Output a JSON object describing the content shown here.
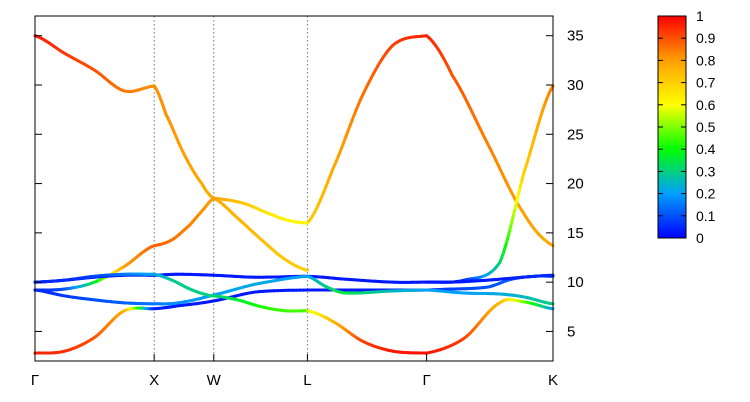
{
  "chart_data": {
    "type": "line",
    "title": "",
    "xlabel": "",
    "ylabel": "",
    "ylim": [
      2,
      37
    ],
    "grid": false,
    "legend": "none",
    "x_ticks": [
      "Γ",
      "X",
      "W",
      "L",
      "Γ",
      "K"
    ],
    "x_tick_positions": [
      0,
      1,
      1.5,
      2.2857,
      3.2857,
      4.3463
    ],
    "y_ticks": [
      5,
      10,
      15,
      20,
      25,
      30,
      35
    ],
    "y_tick_labels": [
      "5",
      "10",
      "15",
      "20",
      "25",
      "30",
      "35"
    ],
    "high_symmetry_lines": [
      1,
      1.5,
      2.2857
    ],
    "colorbar": {
      "ticks": [
        0,
        0.1,
        0.2,
        0.3,
        0.4,
        0.5,
        0.6,
        0.7,
        0.8,
        0.9,
        1
      ],
      "tick_labels": [
        "0",
        "0.1",
        "0.2",
        "0.3",
        "0.4",
        "0.5",
        "0.6",
        "0.7",
        "0.8",
        "0.9",
        "1"
      ],
      "colors": [
        "#0000ff",
        "#00a0ff",
        "#00ff00",
        "#ffff00",
        "#ffa000",
        "#ff0000"
      ]
    },
    "series": [
      {
        "x": [
          0,
          0.25,
          0.5,
          0.75,
          1.0
        ],
        "y": [
          35.0,
          33.2,
          31.5,
          29.4,
          29.9
        ],
        "c": [
          0.97,
          0.93,
          0.9,
          0.85,
          0.82
        ]
      },
      {
        "x": [
          1.0,
          1.1,
          1.25,
          1.4,
          1.5
        ],
        "y": [
          29.9,
          27.0,
          23.0,
          20.0,
          18.5
        ],
        "c": [
          0.82,
          0.82,
          0.8,
          0.78,
          0.78
        ]
      },
      {
        "x": [
          1.5,
          1.7,
          1.9,
          2.1,
          2.2857
        ],
        "y": [
          18.5,
          16.5,
          14.3,
          12.3,
          11.2
        ],
        "c": [
          0.78,
          0.76,
          0.74,
          0.72,
          0.7
        ]
      },
      {
        "x": [
          2.2857,
          2.5,
          2.75,
          3.0,
          3.2857
        ],
        "y": [
          16.0,
          21.5,
          29.0,
          34.0,
          35.0
        ],
        "c": [
          0.7,
          0.78,
          0.86,
          0.92,
          0.96
        ]
      },
      {
        "x": [
          3.2857,
          3.5,
          3.8,
          4.1,
          4.3463
        ],
        "y": [
          35.0,
          31.0,
          24.0,
          17.0,
          13.7
        ],
        "c": [
          0.96,
          0.9,
          0.84,
          0.8,
          0.78
        ]
      },
      {
        "x": [
          0,
          0.25,
          0.5,
          0.75,
          1.0
        ],
        "y": [
          2.8,
          3.0,
          4.4,
          7.1,
          7.3
        ],
        "c": [
          0.96,
          0.94,
          0.9,
          0.78,
          0.04
        ]
      },
      {
        "x": [
          1.0,
          1.2,
          1.5,
          1.85,
          2.2857
        ],
        "y": [
          7.3,
          7.6,
          8.1,
          9.0,
          9.2
        ],
        "c": [
          0.04,
          0.03,
          0.03,
          0.03,
          0.03
        ]
      },
      {
        "x": [
          2.2857,
          2.6,
          3.0,
          3.2857,
          3.5
        ],
        "y": [
          9.2,
          9.2,
          9.2,
          9.2,
          9.3
        ],
        "c": [
          0.03,
          0.03,
          0.04,
          0.05,
          0.08
        ]
      },
      {
        "x": [
          3.5,
          3.8,
          4.0,
          4.2,
          4.3463
        ],
        "y": [
          9.3,
          9.5,
          10.3,
          10.6,
          10.6
        ],
        "c": [
          0.08,
          0.1,
          0.12,
          0.1,
          0.08
        ]
      },
      {
        "x": [
          0,
          0.25,
          0.5,
          0.75,
          1.0
        ],
        "y": [
          9.2,
          9.3,
          10.0,
          11.6,
          13.7
        ],
        "c": [
          0.05,
          0.1,
          0.35,
          0.8,
          0.88
        ]
      },
      {
        "x": [
          1.0,
          1.15,
          1.3,
          1.4,
          1.5
        ],
        "y": [
          13.7,
          14.3,
          15.8,
          17.2,
          18.5
        ],
        "c": [
          0.88,
          0.86,
          0.84,
          0.82,
          0.8
        ]
      },
      {
        "x": [
          1.5,
          1.75,
          2.0,
          2.15,
          2.2857
        ],
        "y": [
          18.5,
          18.0,
          16.8,
          16.2,
          16.0
        ],
        "c": [
          0.8,
          0.72,
          0.64,
          0.62,
          0.62
        ]
      },
      {
        "x": [
          3.2857,
          3.6,
          3.9,
          4.1,
          4.3463
        ],
        "y": [
          10.0,
          10.2,
          12.0,
          21.0,
          29.9
        ],
        "c": [
          0.03,
          0.05,
          0.3,
          0.7,
          0.85
        ]
      },
      {
        "x": [
          0,
          0.25,
          0.5,
          0.75,
          1.0
        ],
        "y": [
          10.0,
          10.2,
          10.5,
          10.7,
          10.7
        ],
        "c": [
          0.05,
          0.05,
          0.04,
          0.03,
          0.03
        ]
      },
      {
        "x": [
          1.0,
          1.2,
          1.5,
          1.85,
          2.2857
        ],
        "y": [
          10.7,
          10.8,
          10.7,
          10.5,
          10.6
        ],
        "c": [
          0.03,
          0.03,
          0.03,
          0.03,
          0.03
        ]
      },
      {
        "x": [
          2.2857,
          2.6,
          3.0,
          3.2857,
          3.5
        ],
        "y": [
          10.6,
          10.3,
          10.0,
          10.0,
          10.0
        ],
        "c": [
          0.03,
          0.03,
          0.03,
          0.03,
          0.03
        ]
      },
      {
        "x": [
          3.5,
          3.8,
          4.0,
          4.2,
          4.3463
        ],
        "y": [
          10.0,
          10.2,
          10.4,
          10.6,
          10.7
        ],
        "c": [
          0.03,
          0.03,
          0.04,
          0.05,
          0.05
        ]
      },
      {
        "x": [
          0,
          0.25,
          0.5,
          0.75,
          1.0
        ],
        "y": [
          9.2,
          8.6,
          8.2,
          7.9,
          7.8
        ],
        "c": [
          0.05,
          0.07,
          0.1,
          0.12,
          0.15
        ]
      },
      {
        "x": [
          1.0,
          1.2,
          1.5,
          1.85,
          2.2857
        ],
        "y": [
          7.8,
          7.9,
          8.7,
          9.8,
          10.6
        ],
        "c": [
          0.15,
          0.18,
          0.2,
          0.22,
          0.2
        ]
      },
      {
        "x": [
          2.2857,
          2.45,
          2.6,
          3.0,
          3.2857
        ],
        "y": [
          10.6,
          9.5,
          8.9,
          9.1,
          9.2
        ],
        "c": [
          0.2,
          0.3,
          0.35,
          0.25,
          0.2
        ]
      },
      {
        "x": [
          3.2857,
          3.6,
          3.9,
          4.1,
          4.3463
        ],
        "y": [
          9.2,
          8.9,
          8.8,
          8.5,
          7.8
        ],
        "c": [
          0.2,
          0.2,
          0.22,
          0.25,
          0.3
        ]
      },
      {
        "x": [
          0,
          0.25,
          0.5,
          0.75,
          1.0
        ],
        "y": [
          10.0,
          10.2,
          10.6,
          10.8,
          10.8
        ],
        "c": [
          0.05,
          0.05,
          0.08,
          0.15,
          0.22
        ]
      },
      {
        "x": [
          1.0,
          1.15,
          1.3,
          1.45,
          1.5
        ],
        "y": [
          10.8,
          10.2,
          9.3,
          8.7,
          8.6
        ],
        "c": [
          0.22,
          0.28,
          0.3,
          0.3,
          0.3
        ]
      },
      {
        "x": [
          1.5,
          1.7,
          1.9,
          2.1,
          2.2857
        ],
        "y": [
          8.6,
          8.2,
          7.5,
          7.1,
          7.1
        ],
        "c": [
          0.3,
          0.35,
          0.42,
          0.45,
          0.45
        ]
      },
      {
        "x": [
          2.2857,
          2.5,
          2.75,
          3.0,
          3.2857
        ],
        "y": [
          7.1,
          6.0,
          4.0,
          3.0,
          2.8
        ],
        "c": [
          0.55,
          0.75,
          0.92,
          0.97,
          0.98
        ]
      },
      {
        "x": [
          3.2857,
          3.6,
          3.9,
          4.1,
          4.3463
        ],
        "y": [
          2.8,
          4.3,
          7.9,
          8.0,
          7.3
        ],
        "c": [
          0.98,
          0.92,
          0.75,
          0.5,
          0.2
        ]
      }
    ]
  }
}
